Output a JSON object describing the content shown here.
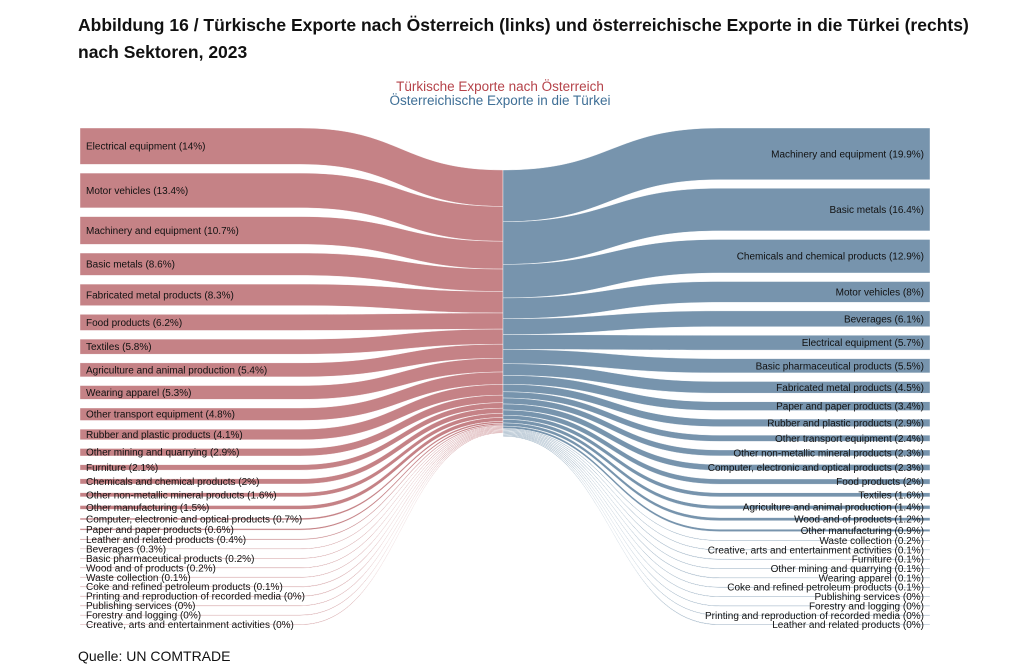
{
  "title": "Abbildung 16 / Türkische Exporte nach Österreich (links) und österreichische Exporte in die Türkei (rechts) nach Sektoren, 2023",
  "legend": {
    "turkish": "Türkische Exporte nach Österreich",
    "austrian": "Österreichische Exporte in die Türkei"
  },
  "source": "Quelle: UN COMTRADE",
  "colors": {
    "left": "#c0777c",
    "right": "#6b8ba6"
  },
  "chart_data": {
    "type": "sankey",
    "left": [
      {
        "label": "Electrical equipment (14%)",
        "value": 14
      },
      {
        "label": "Motor vehicles (13.4%)",
        "value": 13.4
      },
      {
        "label": "Machinery and equipment (10.7%)",
        "value": 10.7
      },
      {
        "label": "Basic metals (8.6%)",
        "value": 8.6
      },
      {
        "label": "Fabricated metal products (8.3%)",
        "value": 8.3
      },
      {
        "label": "Food products (6.2%)",
        "value": 6.2
      },
      {
        "label": "Textiles (5.8%)",
        "value": 5.8
      },
      {
        "label": "Agriculture and animal production (5.4%)",
        "value": 5.4
      },
      {
        "label": "Wearing apparel (5.3%)",
        "value": 5.3
      },
      {
        "label": "Other transport equipment (4.8%)",
        "value": 4.8
      },
      {
        "label": "Rubber and plastic products (4.1%)",
        "value": 4.1
      },
      {
        "label": "Other mining and quarrying (2.9%)",
        "value": 2.9
      },
      {
        "label": "Furniture (2.1%)",
        "value": 2.1
      },
      {
        "label": "Chemicals and chemical products (2%)",
        "value": 2
      },
      {
        "label": "Other non-metallic mineral products (1.6%)",
        "value": 1.6
      },
      {
        "label": "Other manufacturing (1.5%)",
        "value": 1.5
      },
      {
        "label": "Computer, electronic and optical products (0.7%)",
        "value": 0.7
      },
      {
        "label": "Paper and paper products (0.6%)",
        "value": 0.6
      },
      {
        "label": "Leather and related products (0.4%)",
        "value": 0.4
      },
      {
        "label": "Beverages (0.3%)",
        "value": 0.3
      },
      {
        "label": "Basic pharmaceutical products (0.2%)",
        "value": 0.2
      },
      {
        "label": "Wood and of products (0.2%)",
        "value": 0.2
      },
      {
        "label": "Waste collection (0.1%)",
        "value": 0.1
      },
      {
        "label": "Coke and refined petroleum products (0.1%)",
        "value": 0.1
      },
      {
        "label": "Printing and reproduction of recorded media (0%)",
        "value": 0
      },
      {
        "label": "Publishing services (0%)",
        "value": 0
      },
      {
        "label": "Forestry and logging (0%)",
        "value": 0
      },
      {
        "label": "Creative, arts and entertainment activities (0%)",
        "value": 0
      }
    ],
    "right": [
      {
        "label": "Machinery and equipment (19.9%)",
        "value": 19.9
      },
      {
        "label": "Basic metals (16.4%)",
        "value": 16.4
      },
      {
        "label": "Chemicals and chemical products (12.9%)",
        "value": 12.9
      },
      {
        "label": "Motor vehicles (8%)",
        "value": 8
      },
      {
        "label": "Beverages (6.1%)",
        "value": 6.1
      },
      {
        "label": "Electrical equipment (5.7%)",
        "value": 5.7
      },
      {
        "label": "Basic pharmaceutical products (5.5%)",
        "value": 5.5
      },
      {
        "label": "Fabricated metal products (4.5%)",
        "value": 4.5
      },
      {
        "label": "Paper and paper products (3.4%)",
        "value": 3.4
      },
      {
        "label": "Rubber and plastic products (2.9%)",
        "value": 2.9
      },
      {
        "label": "Other transport equipment (2.4%)",
        "value": 2.4
      },
      {
        "label": "Other non-metallic mineral products (2.3%)",
        "value": 2.3
      },
      {
        "label": "Computer, electronic and optical products (2.3%)",
        "value": 2.3
      },
      {
        "label": "Food products (2%)",
        "value": 2
      },
      {
        "label": "Textiles (1.6%)",
        "value": 1.6
      },
      {
        "label": "Agriculture and animal production (1.4%)",
        "value": 1.4
      },
      {
        "label": "Wood and of products (1.2%)",
        "value": 1.2
      },
      {
        "label": "Other manufacturing (0.9%)",
        "value": 0.9
      },
      {
        "label": "Waste collection (0.2%)",
        "value": 0.2
      },
      {
        "label": "Creative, arts and entertainment activities (0.1%)",
        "value": 0.1
      },
      {
        "label": "Furniture (0.1%)",
        "value": 0.1
      },
      {
        "label": "Other mining and quarrying (0.1%)",
        "value": 0.1
      },
      {
        "label": "Wearing apparel (0.1%)",
        "value": 0.1
      },
      {
        "label": "Coke and refined petroleum products (0.1%)",
        "value": 0.1
      },
      {
        "label": "Publishing services (0%)",
        "value": 0
      },
      {
        "label": "Forestry and logging (0%)",
        "value": 0
      },
      {
        "label": "Printing and reproduction of recorded media (0%)",
        "value": 0
      },
      {
        "label": "Leather and related products (0%)",
        "value": 0
      }
    ]
  }
}
